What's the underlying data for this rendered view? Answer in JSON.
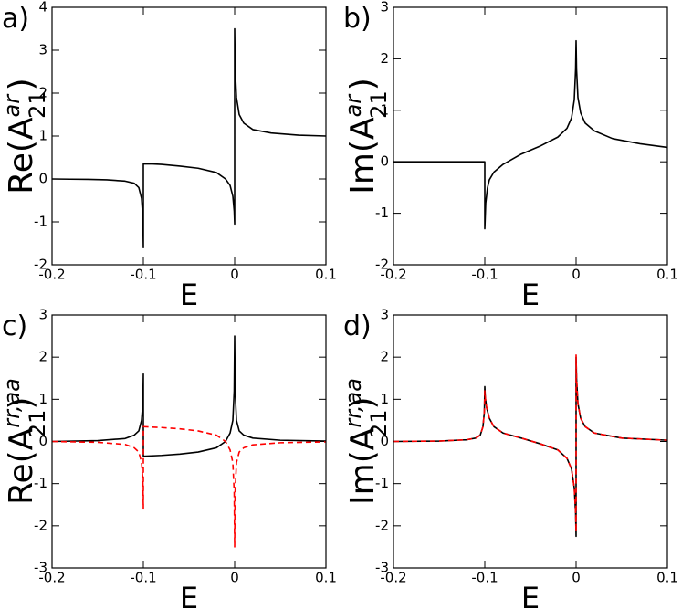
{
  "chart_data": [
    {
      "type": "line",
      "label": "a)",
      "xlabel": "E",
      "ylabel": {
        "text": "Re(A",
        "superscript": "ar",
        "subscript": "21",
        "end": ")"
      },
      "xlim": [
        -0.2,
        0.1
      ],
      "xticks": [
        -0.2,
        -0.1,
        0,
        0.1
      ],
      "ylim": [
        -2,
        4
      ],
      "yticks": [
        -2,
        -1,
        0,
        1,
        2,
        3,
        4
      ],
      "x": [
        -0.2,
        -0.18,
        -0.16,
        -0.14,
        -0.12,
        -0.11,
        -0.105,
        -0.102,
        -0.1005,
        -0.1,
        -0.1,
        -0.09,
        -0.08,
        -0.06,
        -0.04,
        -0.02,
        -0.01,
        -0.005,
        -0.002,
        -0.0005,
        0,
        0,
        0.0005,
        0.002,
        0.005,
        0.01,
        0.02,
        0.04,
        0.07,
        0.1
      ],
      "series": [
        {
          "color": "#000000",
          "style": "solid",
          "values": [
            0,
            -0.005,
            -0.01,
            -0.02,
            -0.05,
            -0.1,
            -0.2,
            -0.45,
            -0.9,
            -1.6,
            0.35,
            0.35,
            0.34,
            0.3,
            0.25,
            0.15,
            0.0,
            -0.15,
            -0.4,
            -0.75,
            -1.05,
            3.5,
            2.6,
            1.9,
            1.5,
            1.3,
            1.15,
            1.07,
            1.02,
            1.0
          ]
        }
      ]
    },
    {
      "type": "line",
      "label": "b)",
      "xlabel": "E",
      "ylabel": {
        "text": "Im(A",
        "superscript": "ar",
        "subscript": "21",
        "end": ")"
      },
      "xlim": [
        -0.2,
        0.1
      ],
      "xticks": [
        -0.2,
        -0.1,
        0,
        0.1
      ],
      "ylim": [
        -2,
        3
      ],
      "yticks": [
        -2,
        -1,
        0,
        1,
        2,
        3
      ],
      "x": [
        -0.2,
        -0.1,
        -0.1,
        -0.099,
        -0.097,
        -0.095,
        -0.09,
        -0.08,
        -0.06,
        -0.04,
        -0.02,
        -0.01,
        -0.005,
        -0.002,
        -0.0005,
        0,
        0.0005,
        0.002,
        0.005,
        0.01,
        0.02,
        0.04,
        0.07,
        0.1
      ],
      "series": [
        {
          "color": "#000000",
          "style": "solid",
          "values": [
            0,
            0,
            -1.3,
            -0.8,
            -0.5,
            -0.35,
            -0.2,
            -0.05,
            0.15,
            0.3,
            0.48,
            0.65,
            0.85,
            1.2,
            1.8,
            2.35,
            1.8,
            1.25,
            0.95,
            0.75,
            0.6,
            0.45,
            0.35,
            0.28
          ]
        }
      ]
    },
    {
      "type": "line",
      "label": "c)",
      "xlabel": "E",
      "ylabel": {
        "text": "Re(A",
        "superscript": "rr,aa",
        "subscript": "21",
        "end": ")"
      },
      "xlim": [
        -0.2,
        0.1
      ],
      "xticks": [
        -0.2,
        -0.1,
        0,
        0.1
      ],
      "ylim": [
        -3,
        3
      ],
      "yticks": [
        -3,
        -2,
        -1,
        0,
        1,
        2,
        3
      ],
      "x": [
        -0.2,
        -0.15,
        -0.12,
        -0.11,
        -0.105,
        -0.102,
        -0.1005,
        -0.1,
        -0.1,
        -0.08,
        -0.06,
        -0.04,
        -0.02,
        -0.01,
        -0.005,
        -0.002,
        -0.0005,
        0,
        0.0005,
        0.002,
        0.005,
        0.01,
        0.02,
        0.05,
        0.1
      ],
      "series": [
        {
          "color": "#000000",
          "style": "solid",
          "values": [
            0,
            0.02,
            0.07,
            0.15,
            0.25,
            0.5,
            0.9,
            1.6,
            -0.35,
            -0.33,
            -0.3,
            -0.25,
            -0.15,
            0.0,
            0.2,
            0.5,
            1.2,
            2.5,
            1.2,
            0.5,
            0.25,
            0.15,
            0.08,
            0.03,
            0.01
          ]
        },
        {
          "color": "#ff0000",
          "style": "dashed",
          "values": [
            0,
            -0.02,
            -0.07,
            -0.15,
            -0.25,
            -0.5,
            -0.9,
            -1.6,
            0.35,
            0.33,
            0.3,
            0.25,
            0.15,
            0.0,
            -0.2,
            -0.5,
            -1.2,
            -2.5,
            -1.2,
            -0.5,
            -0.25,
            -0.15,
            -0.08,
            -0.03,
            -0.01
          ]
        }
      ]
    },
    {
      "type": "line",
      "label": "d)",
      "xlabel": "E",
      "ylabel": {
        "text": "Im(A",
        "superscript": "rr,aa",
        "subscript": "21",
        "end": ")"
      },
      "xlim": [
        -0.2,
        0.1
      ],
      "xticks": [
        -0.2,
        -0.1,
        0,
        0.1
      ],
      "ylim": [
        -3,
        3
      ],
      "yticks": [
        -3,
        -2,
        -1,
        0,
        1,
        2,
        3
      ],
      "x": [
        -0.2,
        -0.15,
        -0.12,
        -0.11,
        -0.105,
        -0.102,
        -0.1005,
        -0.1,
        -0.0995,
        -0.098,
        -0.095,
        -0.09,
        -0.08,
        -0.06,
        -0.04,
        -0.02,
        -0.01,
        -0.005,
        -0.002,
        -0.0005,
        0,
        0,
        0.0005,
        0.002,
        0.005,
        0.01,
        0.02,
        0.05,
        0.1
      ],
      "series": [
        {
          "color": "#000000",
          "style": "solid",
          "values": [
            0,
            0.01,
            0.04,
            0.08,
            0.15,
            0.35,
            0.7,
            1.3,
            1.05,
            0.8,
            0.55,
            0.35,
            0.2,
            0.08,
            -0.05,
            -0.2,
            -0.4,
            -0.65,
            -1.1,
            -1.7,
            -2.25,
            2.0,
            1.5,
            0.9,
            0.55,
            0.35,
            0.2,
            0.08,
            0.03
          ]
        },
        {
          "color": "#ff0000",
          "style": "dashed",
          "values": [
            0,
            0.01,
            0.04,
            0.08,
            0.15,
            0.35,
            0.7,
            1.2,
            1.05,
            0.8,
            0.55,
            0.35,
            0.2,
            0.08,
            -0.05,
            -0.2,
            -0.4,
            -0.65,
            -1.1,
            -1.7,
            -2.15,
            2.05,
            1.5,
            0.9,
            0.55,
            0.35,
            0.2,
            0.08,
            0.03
          ]
        }
      ]
    }
  ]
}
